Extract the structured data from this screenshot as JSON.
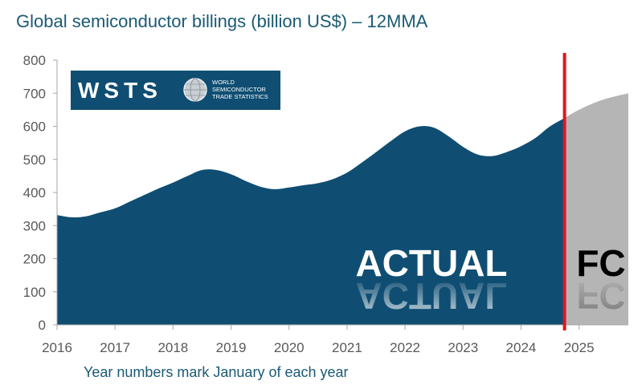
{
  "title": "Global semiconductor billings (billion US$) – 12MMA",
  "subtitle": "Year numbers mark January of each year",
  "logo": {
    "wordmark": "WSTS",
    "line1": "WORLD",
    "line2": "SEMICONDUCTOR",
    "line3": "TRADE STATISTICS"
  },
  "chart_data": {
    "type": "area",
    "title": "Global semiconductor billings (billion US$) – 12MMA",
    "xlabel": "Year numbers mark January of each year",
    "ylabel": "",
    "xlim": [
      2016,
      2025.85
    ],
    "ylim": [
      0,
      800
    ],
    "yticks": [
      0,
      100,
      200,
      300,
      400,
      500,
      600,
      700,
      800
    ],
    "xticks": [
      2016,
      2017,
      2018,
      2019,
      2020,
      2021,
      2022,
      2023,
      2024,
      2025
    ],
    "grid": false,
    "forecast_start": 2024.75,
    "colors": {
      "actual": "#0f4e72",
      "forecast": "#b5b5b5",
      "divider": "#e3151d"
    },
    "annotations": [
      "ACTUAL",
      "FC"
    ],
    "series": [
      {
        "x": [
          2016.0,
          2016.25,
          2016.5,
          2016.75,
          2017.0,
          2017.25,
          2017.5,
          2017.75,
          2018.0,
          2018.25,
          2018.5,
          2018.75,
          2019.0,
          2019.25,
          2019.5,
          2019.75,
          2020.0,
          2020.25,
          2020.5,
          2020.75,
          2021.0,
          2021.25,
          2021.5,
          2021.75,
          2022.0,
          2022.25,
          2022.5,
          2022.75,
          2023.0,
          2023.25,
          2023.5,
          2023.75,
          2024.0,
          2024.25,
          2024.5,
          2024.75
        ],
        "y": [
          332,
          325,
          328,
          340,
          352,
          372,
          392,
          412,
          430,
          450,
          468,
          468,
          455,
          435,
          418,
          410,
          415,
          422,
          428,
          440,
          460,
          490,
          522,
          555,
          585,
          600,
          596,
          570,
          538,
          515,
          510,
          522,
          540,
          565,
          600,
          625
        ]
      },
      {
        "x": [
          2024.75,
          2025.0,
          2025.25,
          2025.5,
          2025.85
        ],
        "y": [
          625,
          650,
          670,
          685,
          700
        ]
      }
    ]
  }
}
